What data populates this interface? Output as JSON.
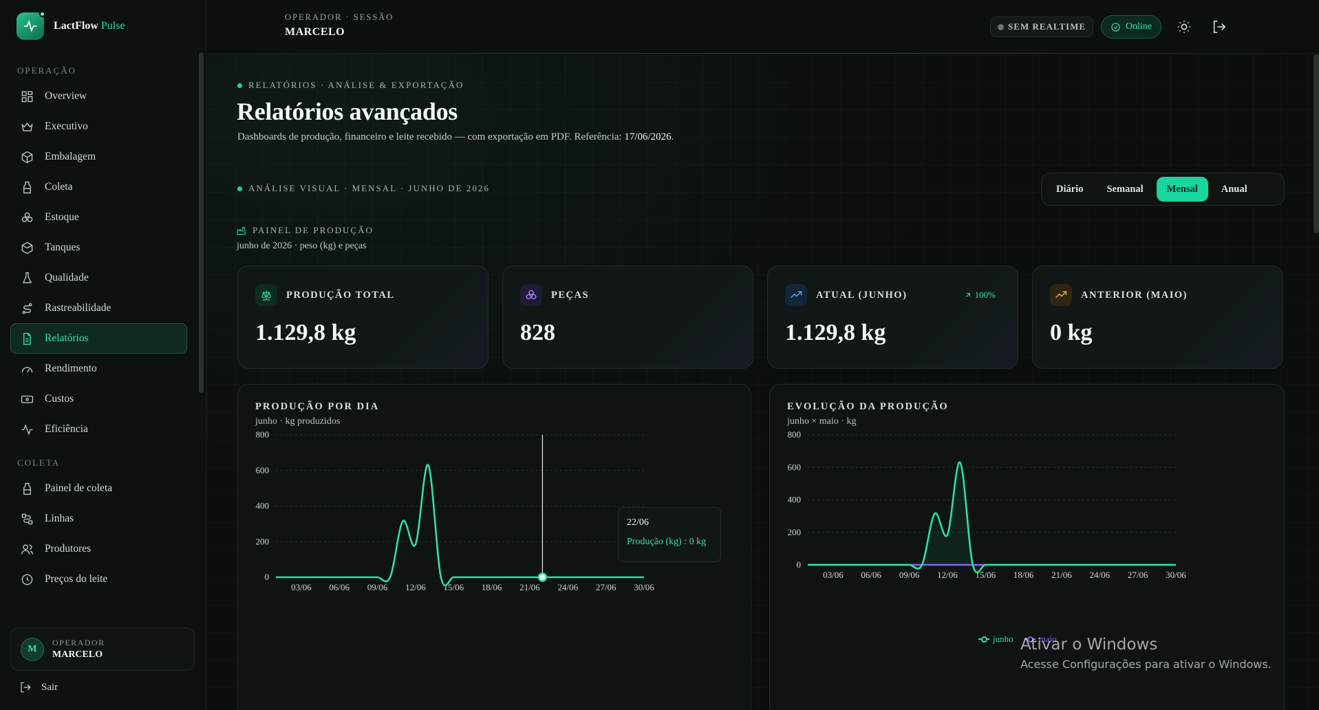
{
  "brand": {
    "name": "LactFlow",
    "sub": "Pulse"
  },
  "sidebar": {
    "sections": [
      {
        "title": "OPERAÇÃO"
      },
      {
        "title": "COLETA"
      }
    ],
    "items": [
      {
        "label": "Overview"
      },
      {
        "label": "Executivo"
      },
      {
        "label": "Embalagem"
      },
      {
        "label": "Coleta"
      },
      {
        "label": "Estoque"
      },
      {
        "label": "Tanques"
      },
      {
        "label": "Qualidade"
      },
      {
        "label": "Rastreabilidade"
      },
      {
        "label": "Relatórios"
      },
      {
        "label": "Rendimento"
      },
      {
        "label": "Custos"
      },
      {
        "label": "Eficiência"
      },
      {
        "label": "Painel de coleta"
      },
      {
        "label": "Linhas"
      },
      {
        "label": "Produtores"
      },
      {
        "label": "Preços do leite"
      }
    ],
    "active_item": "Relatórios",
    "user": {
      "initial": "M",
      "role": "OPERADOR",
      "name": "MARCELO"
    },
    "logout_label": "Sair"
  },
  "topbar": {
    "session_label": "OPERADOR · SESSÃO",
    "session_name": "MARCELO",
    "realtime_label": "SEM REALTIME",
    "online_label": "Online",
    "icons": [
      "sun-icon",
      "logout-icon"
    ]
  },
  "page": {
    "kicker": "RELATÓRIOS · ANÁLISE & EXPORTAÇÃO",
    "title": "Relatórios avançados",
    "description": "Dashboards de produção, financeiro e leite recebido — com exportação em PDF. Referência:",
    "reference_date": "17/06/2026",
    "reference_suffix": ".",
    "analysis_kicker": "ANÁLISE VISUAL · MENSAL · JUNHO DE 2026",
    "periods": [
      "Diário",
      "Semanal",
      "Mensal",
      "Anual"
    ],
    "active_period": "Mensal",
    "panel_title": "PAINEL DE PRODUÇÃO",
    "panel_subtitle": "junho de 2026 · peso (kg) e peças"
  },
  "kpis": [
    {
      "label": "PRODUÇÃO TOTAL",
      "value": "1.129,8 kg",
      "icon": "scale-icon",
      "color": "#2fcf95"
    },
    {
      "label": "PEÇAS",
      "value": "828",
      "icon": "boxes-icon",
      "color": "#a78bfa"
    },
    {
      "label": "ATUAL (JUNHO)",
      "value": "1.129,8 kg",
      "trend": "100%",
      "icon": "trend-up-icon",
      "color": "#4db4f0"
    },
    {
      "label": "ANTERIOR (MAIO)",
      "value": "0 kg",
      "icon": "trend-up-icon",
      "color": "#f0b429"
    }
  ],
  "charts": {
    "by_day": {
      "title": "PRODUÇÃO POR DIA",
      "subtitle": "junho · kg produzidos"
    },
    "evolution": {
      "title": "EVOLUÇÃO DA PRODUÇÃO",
      "subtitle": "junho × maio · kg"
    },
    "tooltip": {
      "date": "22/06",
      "text": "Produção (kg) : 0 kg"
    }
  },
  "chart_data": [
    {
      "type": "area",
      "title": "PRODUÇÃO POR DIA",
      "subtitle": "junho · kg produzidos",
      "x_tick_labels": [
        "03/06",
        "06/06",
        "09/06",
        "12/06",
        "15/06",
        "18/06",
        "21/06",
        "24/06",
        "27/06",
        "30/06"
      ],
      "y_ticks": [
        0,
        200,
        400,
        600,
        800
      ],
      "ylim": [
        0,
        800
      ],
      "grid": true,
      "color": "#2fe0a0",
      "series": [
        {
          "name": "Produção (kg)",
          "x": [
            "01/06",
            "02/06",
            "03/06",
            "04/06",
            "05/06",
            "06/06",
            "07/06",
            "08/06",
            "09/06",
            "10/06",
            "11/06",
            "12/06",
            "13/06",
            "14/06",
            "15/06",
            "16/06",
            "17/06",
            "18/06",
            "19/06",
            "20/06",
            "21/06",
            "22/06",
            "23/06",
            "24/06",
            "25/06",
            "26/06",
            "27/06",
            "28/06",
            "29/06",
            "30/06"
          ],
          "values": [
            0,
            0,
            0,
            0,
            0,
            0,
            0,
            0,
            0,
            0,
            315,
            185,
            630,
            0,
            0,
            0,
            0,
            0,
            0,
            0,
            0,
            0,
            0,
            0,
            0,
            0,
            0,
            0,
            0,
            0
          ]
        }
      ]
    },
    {
      "type": "area",
      "title": "EVOLUÇÃO DA PRODUÇÃO",
      "subtitle": "junho × maio · kg",
      "x_tick_labels": [
        "03/06",
        "06/06",
        "09/06",
        "12/06",
        "15/06",
        "18/06",
        "21/06",
        "24/06",
        "27/06",
        "30/06"
      ],
      "y_ticks": [
        0,
        200,
        400,
        600,
        800
      ],
      "ylim": [
        0,
        800
      ],
      "grid": true,
      "legend": "bottom-center",
      "series": [
        {
          "name": "junho",
          "color": "#2fe0a0",
          "values": [
            0,
            0,
            0,
            0,
            0,
            0,
            0,
            0,
            0,
            0,
            315,
            185,
            630,
            0,
            0,
            0,
            0,
            0,
            0,
            0,
            0,
            0,
            0,
            0,
            0,
            0,
            0,
            0,
            0,
            0
          ]
        },
        {
          "name": "maio",
          "color": "#8b5cf6",
          "values": [
            0,
            0,
            0,
            0,
            0,
            0,
            0,
            0,
            0,
            0,
            0,
            0,
            0,
            0,
            0,
            0,
            0,
            0,
            0,
            0,
            0,
            0,
            0,
            0,
            0,
            0,
            0,
            0,
            0,
            0
          ]
        }
      ]
    }
  ],
  "watermark": {
    "title": "Ativar o Windows",
    "text": "Acesse Configurações para ativar o Windows."
  }
}
